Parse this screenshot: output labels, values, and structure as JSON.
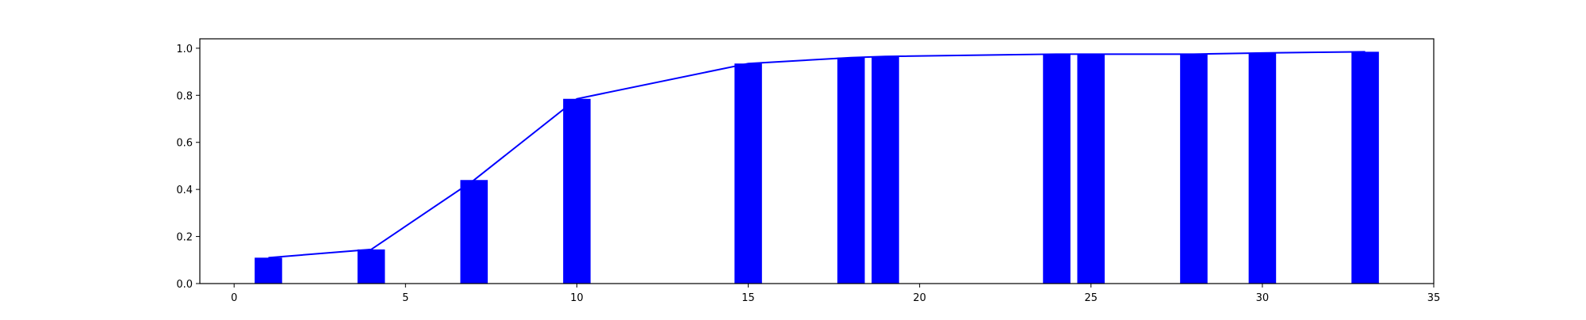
{
  "chart_data": {
    "type": "bar",
    "x": [
      1,
      4,
      7,
      10,
      15,
      18,
      19,
      24,
      25,
      28,
      30,
      33
    ],
    "values": [
      0.11,
      0.145,
      0.44,
      0.785,
      0.935,
      0.96,
      0.965,
      0.975,
      0.975,
      0.975,
      0.98,
      0.985
    ],
    "bar_width": 0.8,
    "line": {
      "x": [
        1,
        4,
        7,
        10,
        15,
        18,
        19,
        24,
        25,
        28,
        30,
        33
      ],
      "y": [
        0.11,
        0.145,
        0.44,
        0.785,
        0.935,
        0.96,
        0.965,
        0.975,
        0.975,
        0.975,
        0.98,
        0.985
      ]
    },
    "xlim": [
      -1,
      35
    ],
    "ylim": [
      0,
      1.04
    ],
    "xticks": [
      0,
      5,
      10,
      15,
      20,
      25,
      30,
      35
    ],
    "yticks": [
      0.0,
      0.2,
      0.4,
      0.6,
      0.8,
      1.0
    ],
    "xtick_labels": [
      "0",
      "5",
      "10",
      "15",
      "20",
      "25",
      "30",
      "35"
    ],
    "ytick_labels": [
      "0.0",
      "0.2",
      "0.4",
      "0.6",
      "0.8",
      "1.0"
    ],
    "title": "",
    "xlabel": "",
    "ylabel": "",
    "grid": false,
    "colors": {
      "bar": "#0000ff",
      "line": "#0000ff"
    }
  }
}
